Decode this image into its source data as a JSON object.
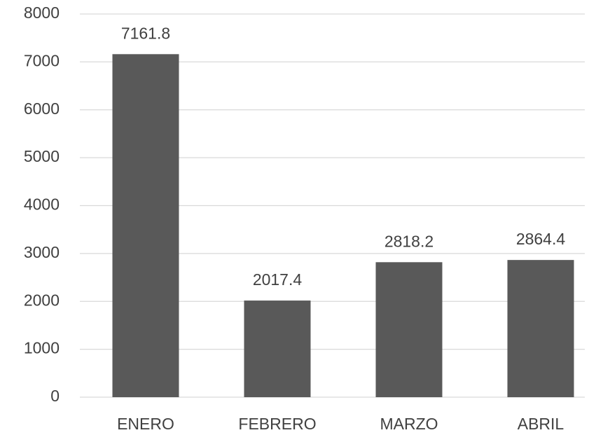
{
  "chart_data": {
    "type": "bar",
    "categories": [
      "ENERO",
      "FEBRERO",
      "MARZO",
      "ABRIL"
    ],
    "values": [
      7161.8,
      2017.4,
      2818.2,
      2864.4
    ],
    "color": "#595959",
    "ylim": [
      0,
      8000
    ],
    "yticks": [
      0,
      1000,
      2000,
      3000,
      4000,
      5000,
      6000,
      7000,
      8000
    ],
    "grid": true
  }
}
